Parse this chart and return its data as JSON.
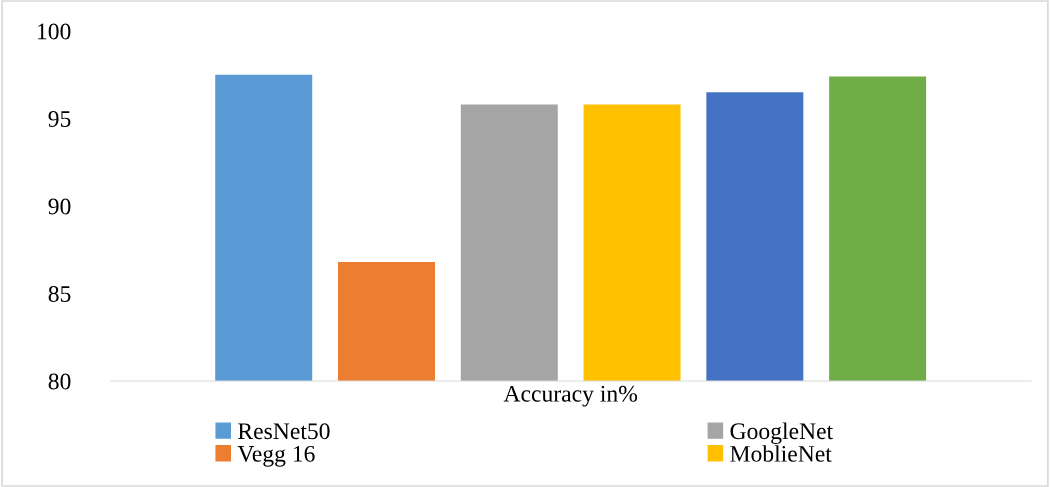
{
  "chart_data": {
    "type": "bar",
    "categories": [
      "Accuracy in%"
    ],
    "series": [
      {
        "name": "ResNet50",
        "color": "#5b9bd5",
        "values": [
          97.5
        ]
      },
      {
        "name": "Vegg 16",
        "color": "#ed7d31",
        "values": [
          86.8
        ]
      },
      {
        "name": "GoogleNet",
        "color": "#a5a5a5",
        "values": [
          95.8
        ]
      },
      {
        "name": "MoblieNet",
        "color": "#ffc000",
        "values": [
          95.8
        ]
      },
      {
        "color": "#4472c4",
        "values": [
          96.5
        ]
      },
      {
        "color": "#70ad47",
        "values": [
          97.4
        ]
      }
    ],
    "ylim": [
      80,
      100
    ],
    "yticks": [
      80,
      85,
      90,
      95,
      100
    ],
    "grid": false,
    "legend": "bottom"
  }
}
